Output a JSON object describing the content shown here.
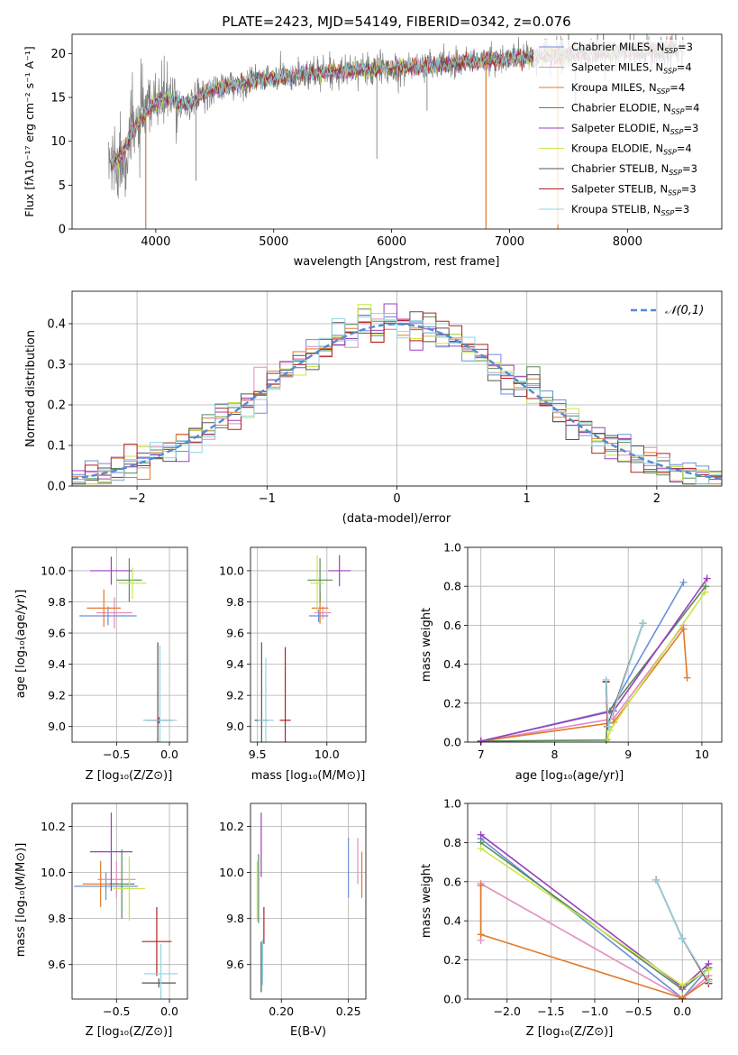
{
  "colors": {
    "Chabrier MILES": "#6a8fd8",
    "Salpeter MILES": "#e48bbf",
    "Kroupa MILES": "#e07a2a",
    "Chabrier ELODIE": "#5a8a5a",
    "Salpeter ELODIE": "#9b3fbf",
    "Kroupa ELODIE": "#c9e64a",
    "Chabrier STELIB": "#555555",
    "Salpeter STELIB": "#b22222",
    "Kroupa STELIB": "#8fd4e4",
    "data": "#808080",
    "gaussian": "#4f8bd6"
  },
  "chart_data": [
    {
      "id": "spectrum",
      "type": "line",
      "title": "PLATE=2423, MJD=54149, FIBERID=0342, z=0.076",
      "xlabel": "wavelength [Angstrom, rest frame]",
      "ylabel": "Flux [fλ10⁻¹⁷ erg cm⁻² s⁻¹ A⁻¹]",
      "xlim": [
        3290,
        8800
      ],
      "ylim": [
        0,
        22.2
      ],
      "xticks": [
        4000,
        5000,
        6000,
        7000,
        8000
      ],
      "yticks": [
        0,
        5,
        10,
        15,
        20
      ],
      "grid": false,
      "legend_position": "right",
      "legend": [
        {
          "name": "Chabrier MILES, N_SSP=3",
          "base": "Chabrier MILES, N",
          "sub": "SSP",
          "suffix": "=3"
        },
        {
          "name": "Salpeter MILES, N_SSP=4",
          "base": "Salpeter MILES, N",
          "sub": "SSP",
          "suffix": "=4"
        },
        {
          "name": "Kroupa MILES, N_SSP=4",
          "base": "Kroupa MILES, N",
          "sub": "SSP",
          "suffix": "=4"
        },
        {
          "name": "Chabrier ELODIE, N_SSP=4",
          "base": "Chabrier ELODIE, N",
          "sub": "SSP",
          "suffix": "=4"
        },
        {
          "name": "Salpeter ELODIE, N_SSP=3",
          "base": "Salpeter ELODIE, N",
          "sub": "SSP",
          "suffix": "=3"
        },
        {
          "name": "Kroupa ELODIE, N_SSP=4",
          "base": "Kroupa ELODIE, N",
          "sub": "SSP",
          "suffix": "=4"
        },
        {
          "name": "Chabrier STELIB, N_SSP=3",
          "base": "Chabrier STELIB, N",
          "sub": "SSP",
          "suffix": "=3"
        },
        {
          "name": "Salpeter STELIB, N_SSP=3",
          "base": "Salpeter STELIB, N",
          "sub": "SSP",
          "suffix": "=3"
        },
        {
          "name": "Kroupa STELIB, N_SSP=3",
          "base": "Kroupa STELIB, N",
          "sub": "SSP",
          "suffix": "=3"
        }
      ],
      "data_trend": {
        "x": [
          3600,
          3700,
          3800,
          3900,
          4000,
          4100,
          4200,
          4300,
          4400,
          4500,
          4600,
          4700,
          4800,
          4900,
          5000,
          5200,
          5400,
          5600,
          5800,
          6000,
          6200,
          6400,
          6600,
          6800,
          7000,
          7200,
          7400,
          7600,
          7800,
          8000,
          8200,
          8400
        ],
        "y": [
          7.5,
          8.0,
          11.0,
          13.0,
          14.5,
          15.0,
          14.2,
          14.3,
          15.5,
          16.0,
          16.2,
          16.5,
          16.8,
          17.0,
          17.2,
          17.6,
          17.9,
          18.0,
          18.2,
          18.4,
          18.5,
          18.7,
          19.0,
          19.2,
          19.4,
          19.6,
          19.8,
          20.0,
          20.2,
          20.3,
          20.4,
          20.5
        ]
      },
      "model_range": [
        3620,
        8420
      ],
      "data_range": [
        3600,
        8480
      ],
      "sky_lines": [
        {
          "x": 3915,
          "y_min": 0
        },
        {
          "x": 4340,
          "y_min": 5.5
        },
        {
          "x": 5875,
          "y_min": 8
        },
        {
          "x": 6300,
          "y_min": 13.5
        },
        {
          "x": 6800,
          "y_min": 0
        },
        {
          "x": 7410,
          "y_min": 0
        },
        {
          "x": 7560,
          "y_min": 14
        }
      ]
    },
    {
      "id": "residuals",
      "type": "line",
      "xlabel": "(data-model)/error",
      "ylabel": "Normed distribution",
      "xlim": [
        -2.5,
        2.5
      ],
      "ylim": [
        0,
        0.48
      ],
      "xticks": [
        -2,
        -1,
        0,
        1,
        2
      ],
      "yticks": [
        0.0,
        0.1,
        0.2,
        0.3,
        0.4
      ],
      "grid": true,
      "legend_position": "top-right",
      "legend": "𝒩(0,1)",
      "series": [
        {
          "name": "Gaussian N(0,1)",
          "function": "exp(-x^2/2)/sqrt(2*pi)",
          "style": "dashed"
        }
      ],
      "histograms": {
        "bin_width": 0.1,
        "note_bins": "histogram around gaussian for each of the 9 model fits"
      }
    },
    {
      "id": "age_vs_Z",
      "type": "scatter",
      "xlabel": "Z [log₁₀(Z/Z⊙)]",
      "ylabel": "age  [log₁₀(age/yr)]",
      "xlim": [
        -0.92,
        0.17
      ],
      "ylim": [
        8.9,
        10.15
      ],
      "xticks": [
        -0.5,
        0.0
      ],
      "yticks": [
        9.0,
        9.2,
        9.4,
        9.6,
        9.8,
        10.0
      ],
      "grid": true,
      "points": [
        {
          "model": "Chabrier MILES",
          "x": -0.58,
          "y": 9.71,
          "xerr": 0.27,
          "yerr": 0.06
        },
        {
          "model": "Salpeter MILES",
          "x": -0.52,
          "y": 9.73,
          "xerr": 0.17,
          "yerr": 0.1
        },
        {
          "model": "Kroupa MILES",
          "x": -0.62,
          "y": 9.76,
          "xerr": 0.16,
          "yerr": 0.12
        },
        {
          "model": "Chabrier ELODIE",
          "x": -0.38,
          "y": 9.94,
          "xerr": 0.12,
          "yerr": 0.14
        },
        {
          "model": "Salpeter ELODIE",
          "x": -0.55,
          "y": 10.0,
          "xerr": 0.2,
          "yerr": 0.09
        },
        {
          "model": "Kroupa ELODIE",
          "x": -0.35,
          "y": 9.92,
          "xerr": 0.13,
          "yerr": 0.1
        },
        {
          "model": "Chabrier STELIB",
          "x": -0.11,
          "y": 9.04,
          "xerr": 0.02,
          "yerr": 0.5
        },
        {
          "model": "Salpeter STELIB",
          "x": -0.1,
          "y": 9.04,
          "xerr": 0.13,
          "yerr": 0.02
        },
        {
          "model": "Kroupa STELIB",
          "x": -0.09,
          "y": 9.04,
          "xerr": 0.16,
          "yerr": 0.48
        }
      ]
    },
    {
      "id": "age_vs_mass",
      "type": "scatter",
      "xlabel": "mass [log₁₀(M/M⊙)]",
      "ylabel": "",
      "xlim": [
        9.45,
        10.28
      ],
      "ylim": [
        8.9,
        10.15
      ],
      "xticks": [
        9.5,
        10.0
      ],
      "yticks": [
        9.0,
        9.2,
        9.4,
        9.6,
        9.8,
        10.0
      ],
      "grid": true,
      "points": [
        {
          "model": "Chabrier MILES",
          "x": 9.94,
          "y": 9.71,
          "xerr": 0.07,
          "yerr": 0.04
        },
        {
          "model": "Salpeter MILES",
          "x": 9.97,
          "y": 9.73,
          "xerr": 0.06,
          "yerr": 0.04
        },
        {
          "model": "Kroupa MILES",
          "x": 9.95,
          "y": 9.76,
          "xerr": 0.06,
          "yerr": 0.1
        },
        {
          "model": "Chabrier ELODIE",
          "x": 9.95,
          "y": 9.94,
          "xerr": 0.09,
          "yerr": 0.14
        },
        {
          "model": "Salpeter ELODIE",
          "x": 10.09,
          "y": 10.0,
          "xerr": 0.08,
          "yerr": 0.1
        },
        {
          "model": "Kroupa ELODIE",
          "x": 9.93,
          "y": 9.92,
          "xerr": 0.05,
          "yerr": 0.18
        },
        {
          "model": "Chabrier STELIB",
          "x": 9.53,
          "y": 9.04,
          "xerr": 0.05,
          "yerr": 0.5
        },
        {
          "model": "Salpeter STELIB",
          "x": 9.7,
          "y": 9.04,
          "xerr": 0.04,
          "yerr": 0.47
        },
        {
          "model": "Kroupa STELIB",
          "x": 9.56,
          "y": 9.04,
          "xerr": 0.06,
          "yerr": 0.4
        }
      ]
    },
    {
      "id": "weight_vs_age",
      "type": "line",
      "xlabel": "age  [log₁₀(age/yr)]",
      "ylabel": "mass weight",
      "xlim": [
        6.82,
        10.27
      ],
      "ylim": [
        0,
        1.0
      ],
      "xticks": [
        7,
        8,
        9,
        10
      ],
      "yticks": [
        0.0,
        0.2,
        0.4,
        0.6,
        0.8,
        1.0
      ],
      "grid": true,
      "series": [
        {
          "model": "Chabrier MILES",
          "x": [
            7.0,
            8.75,
            9.75
          ],
          "y": [
            0.005,
            0.16,
            0.82
          ]
        },
        {
          "model": "Salpeter MILES",
          "x": [
            7.0,
            8.8,
            9.75
          ],
          "y": [
            0.005,
            0.12,
            0.6
          ]
        },
        {
          "model": "Kroupa MILES",
          "x": [
            7.0,
            8.8,
            9.75,
            9.8
          ],
          "y": [
            0.005,
            0.1,
            0.58,
            0.33
          ]
        },
        {
          "model": "Chabrier ELODIE",
          "x": [
            7.0,
            8.7,
            8.72,
            10.05
          ],
          "y": [
            0.005,
            0.01,
            0.15,
            0.8
          ]
        },
        {
          "model": "Salpeter ELODIE",
          "x": [
            7.0,
            8.8,
            10.07
          ],
          "y": [
            0.005,
            0.16,
            0.84
          ]
        },
        {
          "model": "Kroupa ELODIE",
          "x": [
            8.72,
            8.75,
            10.04
          ],
          "y": [
            0.015,
            0.06,
            0.77
          ]
        },
        {
          "model": "Chabrier STELIB",
          "x": [
            8.7,
            8.72,
            9.2
          ],
          "y": [
            0.31,
            0.08,
            0.61
          ]
        },
        {
          "model": "Salpeter STELIB",
          "x": [
            8.7,
            8.72,
            9.2
          ],
          "y": [
            0.31,
            0.08,
            0.61
          ]
        },
        {
          "model": "Kroupa STELIB",
          "x": [
            8.7,
            8.73,
            9.2
          ],
          "y": [
            0.32,
            0.08,
            0.61
          ]
        }
      ]
    },
    {
      "id": "mass_vs_Z",
      "type": "scatter",
      "xlabel": "Z [log₁₀(Z/Z⊙)]",
      "ylabel": "mass [log₁₀(M/M⊙)]",
      "xlim": [
        -0.92,
        0.17
      ],
      "ylim": [
        9.45,
        10.3
      ],
      "xticks": [
        -0.5,
        0.0
      ],
      "yticks": [
        9.6,
        9.8,
        10.0,
        10.2
      ],
      "grid": true,
      "points": [
        {
          "model": "Chabrier MILES",
          "x": -0.6,
          "y": 9.94,
          "xerr": 0.3,
          "yerr": 0.06
        },
        {
          "model": "Salpeter MILES",
          "x": -0.5,
          "y": 9.97,
          "xerr": 0.18,
          "yerr": 0.08
        },
        {
          "model": "Kroupa MILES",
          "x": -0.65,
          "y": 9.95,
          "xerr": 0.17,
          "yerr": 0.1
        },
        {
          "model": "Chabrier ELODIE",
          "x": -0.45,
          "y": 9.95,
          "xerr": 0.12,
          "yerr": 0.15
        },
        {
          "model": "Salpeter ELODIE",
          "x": -0.55,
          "y": 10.09,
          "xerr": 0.2,
          "yerr": 0.17
        },
        {
          "model": "Kroupa ELODIE",
          "x": -0.38,
          "y": 9.93,
          "xerr": 0.15,
          "yerr": 0.14
        },
        {
          "model": "Chabrier STELIB",
          "x": -0.1,
          "y": 9.52,
          "xerr": 0.16,
          "yerr": 0.02
        },
        {
          "model": "Salpeter STELIB",
          "x": -0.12,
          "y": 9.7,
          "xerr": 0.14,
          "yerr": 0.15
        },
        {
          "model": "Kroupa STELIB",
          "x": -0.08,
          "y": 9.56,
          "xerr": 0.16,
          "yerr": 0.13
        }
      ]
    },
    {
      "id": "mass_vs_EBV",
      "type": "scatter",
      "xlabel": "E(B-V)",
      "ylabel": "",
      "xlim": [
        0.177,
        0.263
      ],
      "ylim": [
        9.45,
        10.3
      ],
      "xticks": [
        0.2,
        0.25
      ],
      "yticks": [
        9.6,
        9.8,
        10.0,
        10.2
      ],
      "grid": true,
      "points": [
        {
          "model": "Chabrier MILES",
          "x": 0.25,
          "y": 10.02,
          "xerr": 0.0,
          "yerr": 0.13
        },
        {
          "model": "Salpeter MILES",
          "x": 0.257,
          "y": 10.05,
          "xerr": 0.0,
          "yerr": 0.1
        },
        {
          "model": "Kroupa MILES",
          "x": 0.26,
          "y": 9.99,
          "xerr": 0.0,
          "yerr": 0.1
        },
        {
          "model": "Chabrier ELODIE",
          "x": 0.183,
          "y": 9.93,
          "xerr": 0.0,
          "yerr": 0.15
        },
        {
          "model": "Salpeter ELODIE",
          "x": 0.185,
          "y": 10.12,
          "xerr": 0.0,
          "yerr": 0.14
        },
        {
          "model": "Kroupa ELODIE",
          "x": 0.182,
          "y": 9.92,
          "xerr": 0.0,
          "yerr": 0.13
        },
        {
          "model": "Chabrier STELIB",
          "x": 0.185,
          "y": 9.59,
          "xerr": 0.0,
          "yerr": 0.11
        },
        {
          "model": "Salpeter STELIB",
          "x": 0.187,
          "y": 9.77,
          "xerr": 0.0,
          "yerr": 0.08
        },
        {
          "model": "Kroupa STELIB",
          "x": 0.186,
          "y": 9.61,
          "xerr": 0.0,
          "yerr": 0.1
        }
      ]
    },
    {
      "id": "weight_vs_Z",
      "type": "line",
      "xlabel": "Z [log₁₀(Z/Z⊙)]",
      "ylabel": "mass weight",
      "xlim": [
        -2.45,
        0.45
      ],
      "ylim": [
        0,
        1.0
      ],
      "xticks": [
        -2.0,
        -1.5,
        -1.0,
        -0.5,
        0.0
      ],
      "yticks": [
        0.0,
        0.2,
        0.4,
        0.6,
        0.8,
        1.0
      ],
      "grid": true,
      "series": [
        {
          "model": "Chabrier MILES",
          "x": [
            -2.3,
            0.0,
            0.3
          ],
          "y": [
            0.82,
            0.005,
            0.16
          ]
        },
        {
          "model": "Salpeter MILES",
          "x": [
            -2.3,
            -2.3,
            0.0,
            0.3
          ],
          "y": [
            0.3,
            0.59,
            0.005,
            0.12
          ]
        },
        {
          "model": "Kroupa MILES",
          "x": [
            -2.3,
            -2.3,
            0.0,
            0.3
          ],
          "y": [
            0.58,
            0.33,
            0.005,
            0.1
          ]
        },
        {
          "model": "Chabrier ELODIE",
          "x": [
            -2.3,
            0.0,
            0.3
          ],
          "y": [
            0.8,
            0.05,
            0.16
          ]
        },
        {
          "model": "Salpeter ELODIE",
          "x": [
            -2.3,
            0.0,
            0.3
          ],
          "y": [
            0.84,
            0.06,
            0.18
          ]
        },
        {
          "model": "Kroupa ELODIE",
          "x": [
            -2.3,
            0.0,
            0.3
          ],
          "y": [
            0.77,
            0.07,
            0.15
          ]
        },
        {
          "model": "Chabrier STELIB",
          "x": [
            -0.3,
            0.0,
            0.3
          ],
          "y": [
            0.61,
            0.31,
            0.08
          ]
        },
        {
          "model": "Salpeter STELIB",
          "x": [
            -0.3,
            0.0,
            0.3
          ],
          "y": [
            0.61,
            0.31,
            0.08
          ]
        },
        {
          "model": "Kroupa STELIB",
          "x": [
            -0.3,
            0.0,
            0.3
          ],
          "y": [
            0.61,
            0.31,
            0.09
          ]
        }
      ]
    }
  ]
}
